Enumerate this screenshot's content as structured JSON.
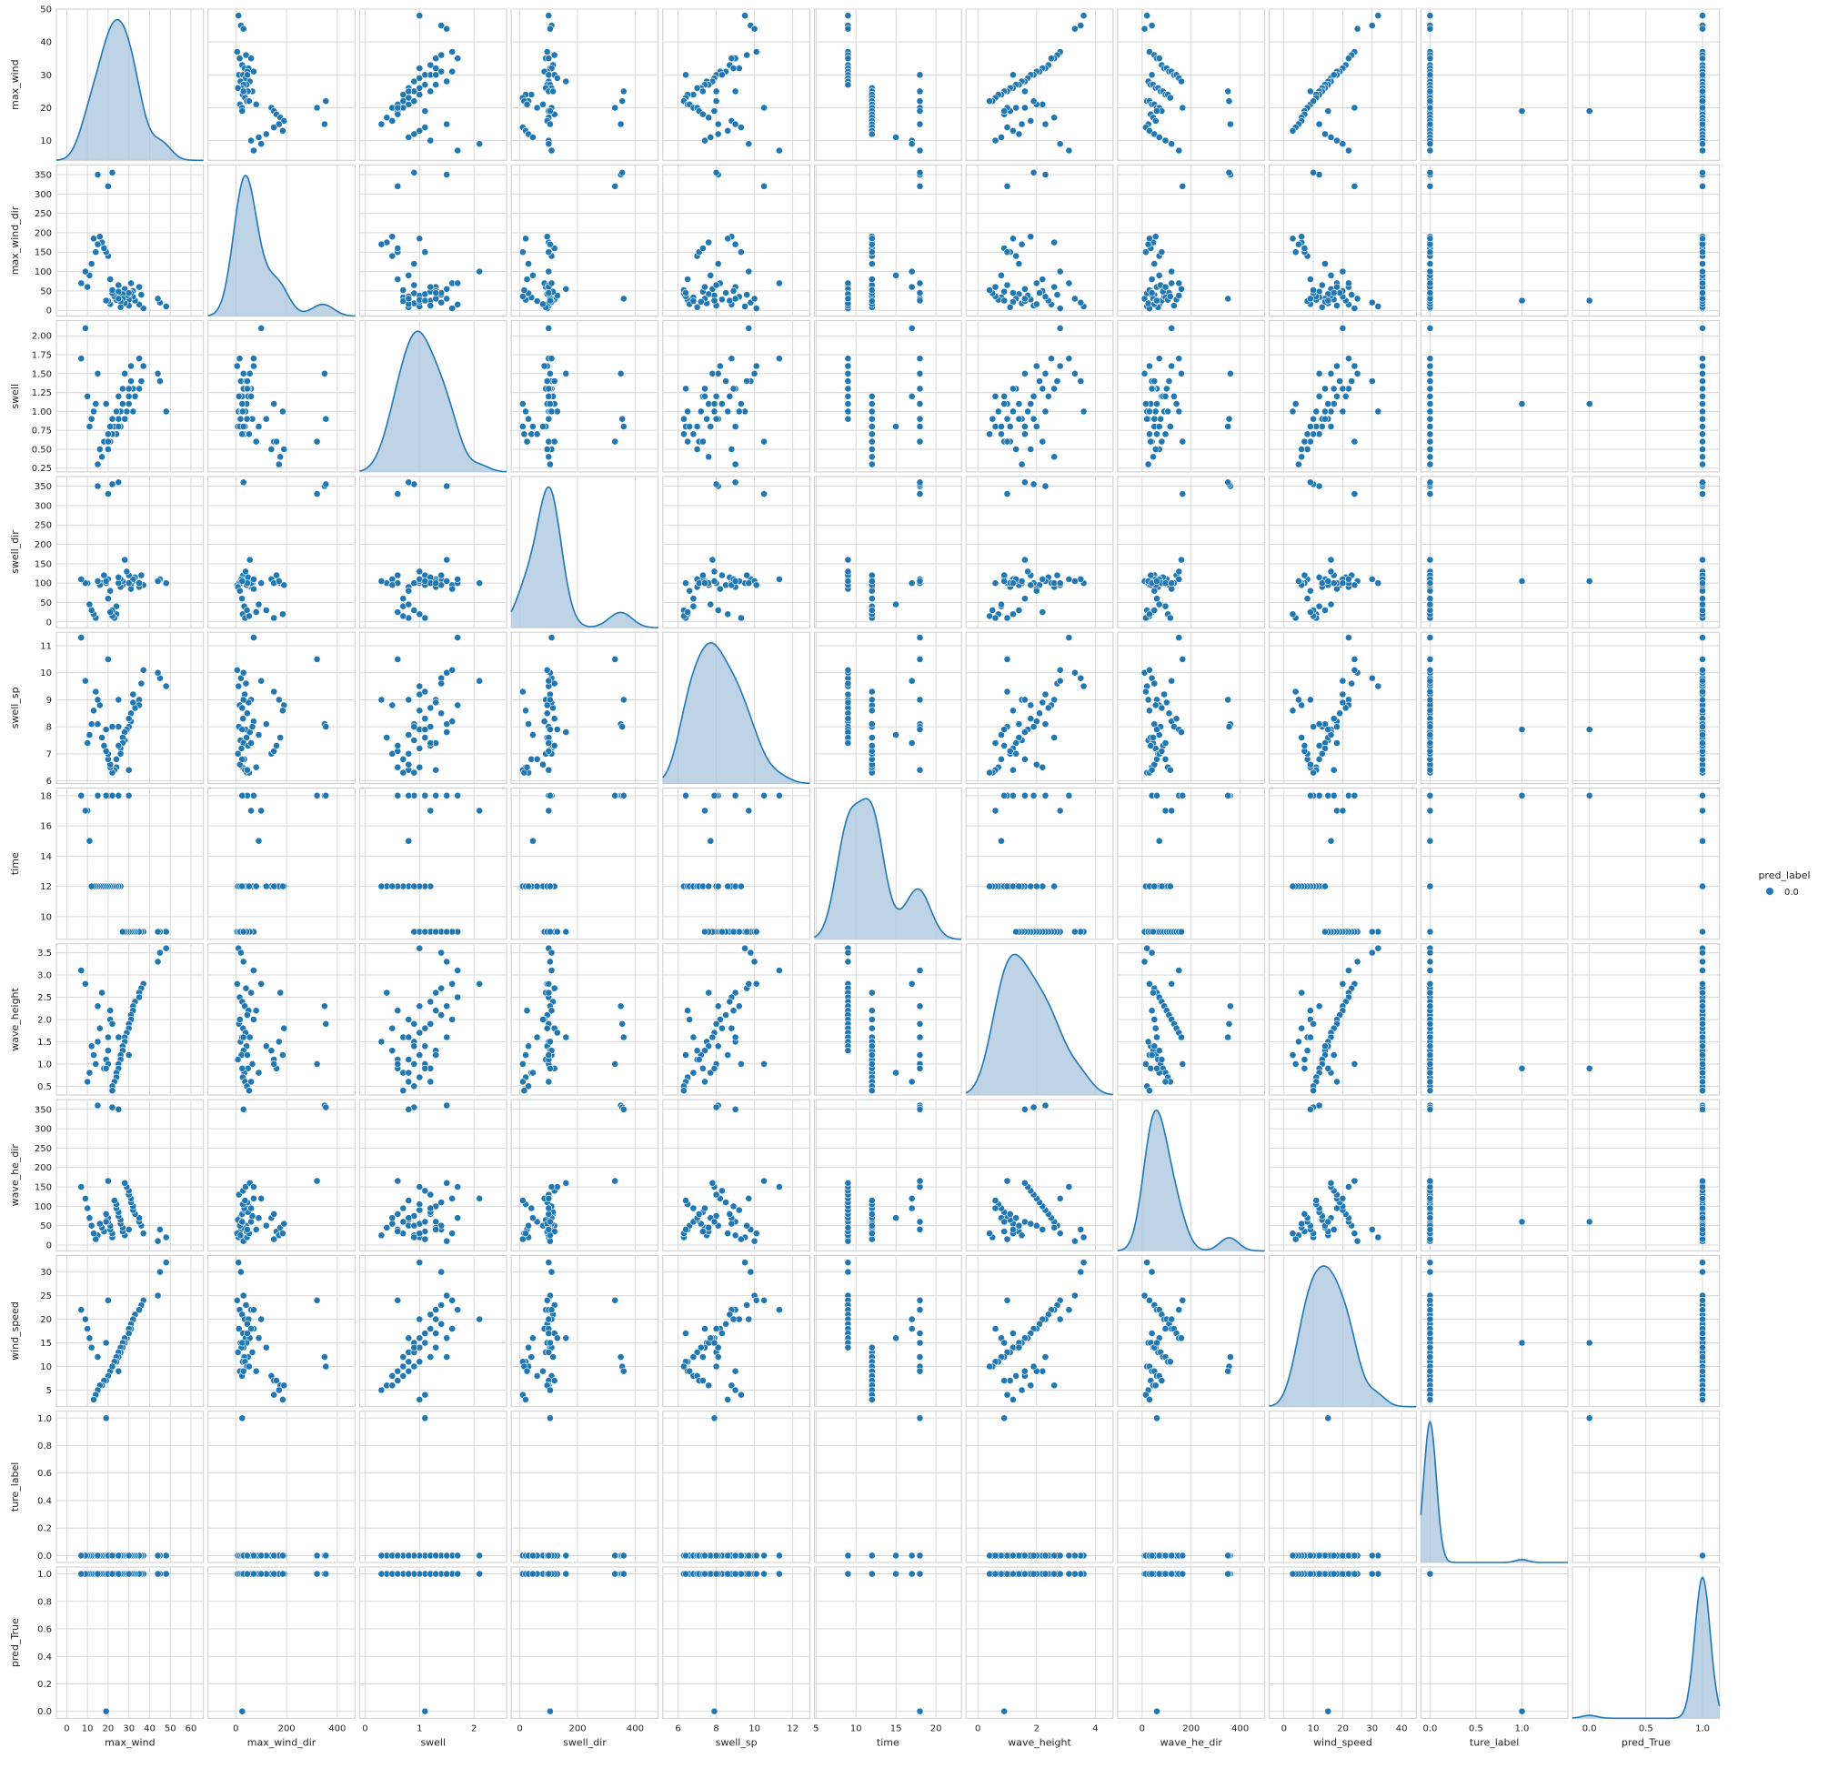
{
  "colors": {
    "point": "#1f77b4",
    "kde_line": "#1f77b4",
    "kde_fill": "#a9c4dd",
    "panel_bg": "#ffffff",
    "grid": "#d9d9d9",
    "frame": "#cccccc"
  },
  "legend": {
    "title": "pred_label",
    "entries": [
      "0.0"
    ]
  },
  "chart_data": {
    "type": "scatter",
    "kind": "pairplot",
    "diag_kind": "kde",
    "grid": true,
    "legend_position": "right",
    "variables": [
      "max_wind",
      "max_wind_dir",
      "swell",
      "swell_dir",
      "swell_sp",
      "time",
      "wave_height",
      "wave_he_dir",
      "wind_speed",
      "ture_label",
      "pred_True"
    ],
    "axes": {
      "max_wind": {
        "lim": [
          -5,
          66
        ],
        "ticks": [
          "0",
          "10",
          "20",
          "30",
          "40",
          "50",
          "60"
        ],
        "row_lim": [
          4,
          50
        ],
        "row_ticks": [
          "10",
          "20",
          "30",
          "40",
          "50"
        ]
      },
      "max_wind_dir": {
        "lim": [
          -110,
          470
        ],
        "ticks": [
          "0",
          "200",
          "400"
        ],
        "row_lim": [
          -15,
          375
        ],
        "row_ticks": [
          "0",
          "50",
          "100",
          "150",
          "200",
          "250",
          "300",
          "350"
        ]
      },
      "swell": {
        "lim": [
          -0.1,
          2.6
        ],
        "ticks": [
          "0",
          "1",
          "2"
        ],
        "row_lim": [
          0.2,
          2.2
        ],
        "row_ticks": [
          "0.25",
          "0.50",
          "0.75",
          "1.00",
          "1.25",
          "1.50",
          "1.75",
          "2.00"
        ]
      },
      "swell_dir": {
        "lim": [
          -30,
          480
        ],
        "ticks": [
          "0",
          "200",
          "400"
        ],
        "row_lim": [
          -15,
          375
        ],
        "row_ticks": [
          "0",
          "50",
          "100",
          "150",
          "200",
          "250",
          "300",
          "350"
        ]
      },
      "swell_sp": {
        "lim": [
          5.2,
          12.9
        ],
        "ticks": [
          "6",
          "8",
          "10",
          "12"
        ],
        "row_lim": [
          5.9,
          11.5
        ],
        "row_ticks": [
          "6",
          "7",
          "8",
          "9",
          "10",
          "11"
        ]
      },
      "time": {
        "lim": [
          4.8,
          23.2
        ],
        "ticks": [
          "5",
          "10",
          "15",
          "20"
        ],
        "row_lim": [
          8.5,
          18.5
        ],
        "row_ticks": [
          "10",
          "12",
          "14",
          "16",
          "18"
        ]
      },
      "wave_height": {
        "lim": [
          -0.4,
          4.6
        ],
        "ticks": [
          "0",
          "2",
          "4"
        ],
        "row_lim": [
          0.3,
          3.7
        ],
        "row_ticks": [
          "0.5",
          "1.0",
          "1.5",
          "2.0",
          "2.5",
          "3.0",
          "3.5"
        ]
      },
      "wave_he_dir": {
        "lim": [
          -100,
          500
        ],
        "ticks": [
          "0",
          "200",
          "400"
        ],
        "row_lim": [
          -15,
          375
        ],
        "row_ticks": [
          "0",
          "50",
          "100",
          "150",
          "200",
          "250",
          "300",
          "350"
        ]
      },
      "wind_speed": {
        "lim": [
          -5,
          45
        ],
        "ticks": [
          "0",
          "10",
          "20",
          "30",
          "40"
        ],
        "row_lim": [
          1.5,
          33.5
        ],
        "row_ticks": [
          "5",
          "10",
          "15",
          "20",
          "25",
          "30"
        ]
      },
      "ture_label": {
        "lim": [
          -0.1,
          1.5
        ],
        "ticks": [
          "0.0",
          "0.5",
          "1.0"
        ],
        "row_lim": [
          -0.05,
          1.05
        ],
        "row_ticks": [
          "0.0",
          "0.2",
          "0.4",
          "0.6",
          "0.8",
          "1.0"
        ]
      },
      "pred_True": {
        "lim": [
          -0.15,
          1.15
        ],
        "ticks": [
          "0.0",
          "0.5",
          "1.0"
        ],
        "row_lim": [
          -0.05,
          1.05
        ],
        "row_ticks": [
          "0.0",
          "0.2",
          "0.4",
          "0.6",
          "0.8",
          "1.0"
        ]
      }
    },
    "rows": [
      [
        48,
        45,
        44,
        37,
        36,
        35,
        35,
        33,
        32,
        32,
        31,
        31,
        30,
        30,
        29,
        28,
        28,
        27,
        27,
        26,
        26,
        25,
        25,
        24,
        24,
        23,
        22,
        22,
        21,
        21,
        20,
        20,
        19,
        18,
        17,
        16,
        15,
        14,
        13,
        12,
        11,
        10,
        9,
        7,
        20,
        15,
        22,
        25,
        30,
        19
      ],
      [
        10,
        20,
        30,
        5,
        40,
        60,
        15,
        25,
        35,
        50,
        45,
        70,
        12,
        28,
        38,
        55,
        18,
        42,
        30,
        22,
        8,
        65,
        48,
        33,
        27,
        36,
        44,
        52,
        80,
        16,
        24,
        140,
        150,
        160,
        175,
        190,
        170,
        150,
        185,
        120,
        90,
        60,
        100,
        70,
        320,
        350,
        355,
        30,
        45,
        25
      ],
      [
        1.0,
        1.4,
        1.5,
        1.6,
        1.4,
        1.3,
        1.7,
        1.2,
        1.0,
        1.3,
        1.4,
        1.6,
        1.2,
        1.1,
        1.0,
        1.5,
        0.9,
        1.1,
        1.3,
        1.0,
        0.8,
        0.9,
        1.2,
        0.7,
        1.0,
        0.8,
        0.9,
        0.7,
        0.6,
        0.8,
        0.7,
        0.5,
        0.6,
        0.6,
        0.4,
        0.5,
        0.3,
        1.1,
        1.0,
        0.9,
        0.8,
        1.2,
        2.1,
        1.7,
        0.6,
        1.5,
        0.9,
        0.8,
        1.3,
        1.1
      ],
      [
        100,
        110,
        105,
        95,
        120,
        90,
        100,
        115,
        105,
        110,
        95,
        85,
        100,
        120,
        130,
        160,
        100,
        95,
        105,
        110,
        90,
        100,
        115,
        40,
        20,
        10,
        30,
        15,
        25,
        80,
        60,
        110,
        100,
        120,
        100,
        95,
        105,
        10,
        20,
        30,
        45,
        100,
        100,
        110,
        330,
        350,
        355,
        360,
        100,
        105
      ],
      [
        9.5,
        9.8,
        10.0,
        10.1,
        9.6,
        9.0,
        8.8,
        8.7,
        9.2,
        8.9,
        8.5,
        8.2,
        8.0,
        8.3,
        7.9,
        7.8,
        7.5,
        7.6,
        7.4,
        7.2,
        7.0,
        8.0,
        7.3,
        6.8,
        6.5,
        6.4,
        6.3,
        6.3,
        6.5,
        6.6,
        6.8,
        7.0,
        7.1,
        7.3,
        7.6,
        8.8,
        9.0,
        9.3,
        8.6,
        8.1,
        7.7,
        7.4,
        9.7,
        11.3,
        10.5,
        8.1,
        8.0,
        9.0,
        6.4,
        7.9
      ],
      [
        9,
        9,
        9,
        9,
        9,
        9,
        9,
        9,
        9,
        9,
        9,
        9,
        9,
        9,
        9,
        9,
        9,
        9,
        9,
        12,
        12,
        12,
        12,
        12,
        12,
        12,
        12,
        12,
        12,
        12,
        12,
        12,
        12,
        12,
        12,
        12,
        12,
        12,
        12,
        12,
        15,
        17,
        17,
        18,
        18,
        18,
        18,
        18,
        18,
        18
      ],
      [
        3.6,
        3.5,
        3.3,
        2.8,
        2.7,
        2.6,
        2.5,
        2.4,
        2.3,
        2.2,
        2.1,
        2.0,
        1.9,
        1.8,
        1.7,
        1.6,
        1.5,
        1.4,
        1.3,
        1.2,
        1.1,
        1.0,
        0.9,
        0.8,
        0.7,
        0.6,
        0.5,
        0.4,
        2.2,
        2.0,
        1.6,
        1.3,
        1.1,
        0.9,
        2.6,
        1.8,
        1.5,
        1.0,
        1.2,
        1.4,
        0.8,
        0.6,
        2.8,
        3.1,
        1.0,
        2.3,
        1.9,
        1.6,
        1.2,
        0.9
      ],
      [
        20,
        40,
        10,
        30,
        50,
        60,
        70,
        80,
        90,
        100,
        110,
        120,
        130,
        140,
        150,
        160,
        25,
        35,
        45,
        55,
        65,
        75,
        85,
        95,
        105,
        115,
        20,
        30,
        40,
        50,
        60,
        70,
        80,
        35,
        45,
        55,
        25,
        15,
        30,
        50,
        70,
        95,
        120,
        150,
        165,
        360,
        355,
        350,
        40,
        60
      ],
      [
        32,
        30,
        25,
        24,
        23,
        22,
        22,
        21,
        20,
        20,
        19,
        18,
        18,
        17,
        16,
        16,
        15,
        15,
        14,
        14,
        13,
        13,
        12,
        12,
        11,
        11,
        10,
        10,
        9,
        9,
        8,
        8,
        7,
        7,
        6,
        6,
        5,
        4,
        3,
        14,
        16,
        18,
        20,
        22,
        24,
        12,
        10,
        9,
        17,
        15
      ],
      [
        0,
        0,
        0,
        0,
        0,
        0,
        0,
        0,
        0,
        0,
        0,
        0,
        0,
        0,
        0,
        0,
        0,
        0,
        0,
        0,
        0,
        0,
        0,
        0,
        0,
        0,
        0,
        0,
        0,
        0,
        0,
        0,
        0,
        0,
        0,
        0,
        0,
        0,
        0,
        0,
        0,
        0,
        0,
        0,
        0,
        0,
        0,
        0,
        0,
        1
      ],
      [
        1,
        1,
        1,
        1,
        1,
        1,
        1,
        1,
        1,
        1,
        1,
        1,
        1,
        1,
        1,
        1,
        1,
        1,
        1,
        1,
        1,
        1,
        1,
        1,
        1,
        1,
        1,
        1,
        1,
        1,
        1,
        1,
        1,
        1,
        1,
        1,
        1,
        1,
        1,
        1,
        1,
        1,
        1,
        1,
        1,
        1,
        1,
        1,
        1,
        0
      ]
    ]
  }
}
